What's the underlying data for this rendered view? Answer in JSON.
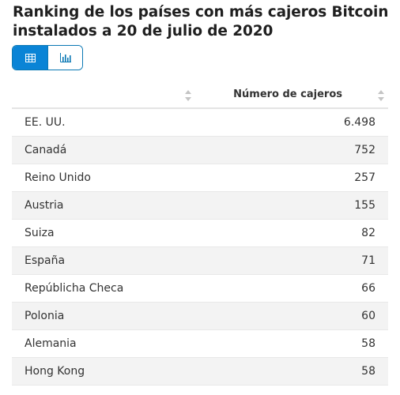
{
  "title": "Ranking de los países con más cajeros Bitcoin instalados a 20 de julio de 2020",
  "view_toggle": {
    "table_icon": "table-icon",
    "chart_icon": "bar-chart-icon",
    "active": "table",
    "accent_color": "#0a84d6"
  },
  "table": {
    "headers": [
      "",
      "Número de cajeros"
    ],
    "rows": [
      {
        "country": "EE. UU.",
        "value": "6.498"
      },
      {
        "country": "Canadá",
        "value": "752"
      },
      {
        "country": "Reino Unido",
        "value": "257"
      },
      {
        "country": "Austria",
        "value": "155"
      },
      {
        "country": "Suiza",
        "value": "82"
      },
      {
        "country": "España",
        "value": "71"
      },
      {
        "country": "Repúblicha Checa",
        "value": "66"
      },
      {
        "country": "Polonia",
        "value": "60"
      },
      {
        "country": "Alemania",
        "value": "58"
      },
      {
        "country": "Hong Kong",
        "value": "58"
      }
    ]
  }
}
